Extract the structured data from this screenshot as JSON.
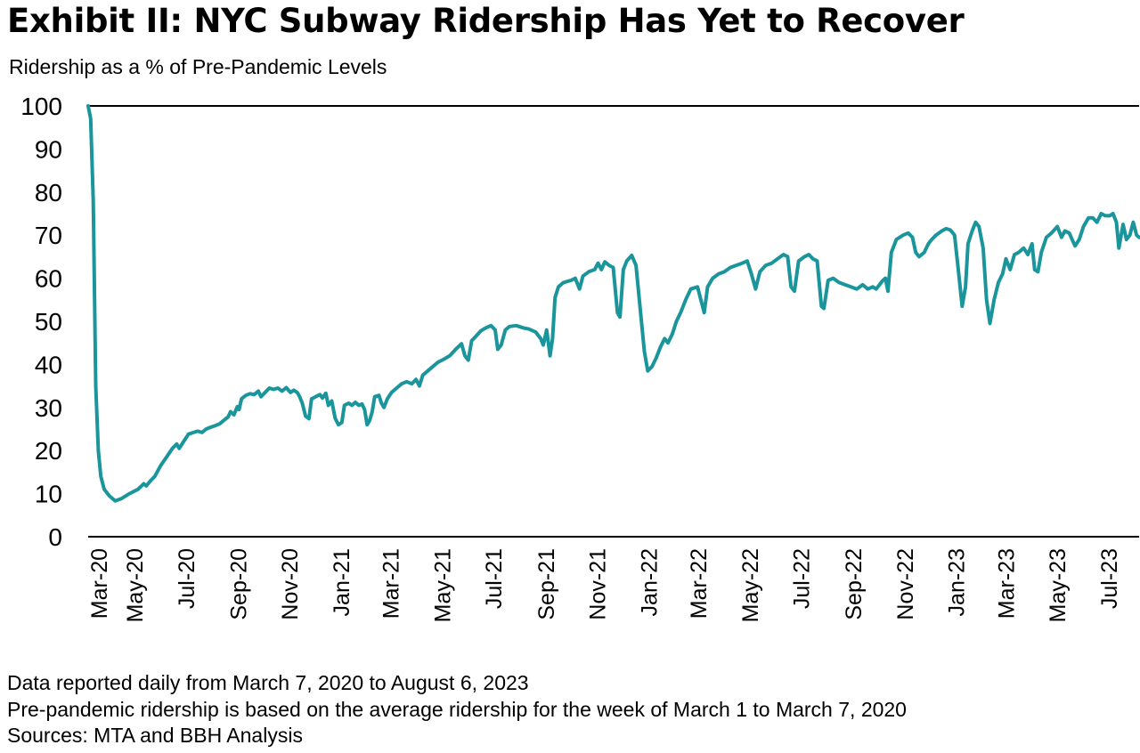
{
  "title": "Exhibit II: NYC Subway Ridership Has Yet to Recover",
  "notes": [
    "Data reported daily from March 7, 2020 to August 6, 2023",
    "Pre-pandemic ridership is based on the average ridership for the week of March 1 to March 7, 2020",
    "Sources: MTA and BBH Analysis"
  ],
  "colors": {
    "line": "#1a959b",
    "axis": "#000000"
  },
  "chart_data": {
    "type": "line",
    "title": "Exhibit II: NYC Subway Ridership Has Yet to Recover",
    "ylabel": "Ridership as a % of Pre-Pandemic Levels",
    "xlabel": "",
    "ylim": [
      0,
      100
    ],
    "yticks": [
      0,
      10,
      20,
      30,
      40,
      50,
      60,
      70,
      80,
      90,
      100
    ],
    "xlim": [
      "2020-03-07",
      "2023-08-06"
    ],
    "xticks": [
      {
        "label": "Mar-20",
        "date": "2020-03-01"
      },
      {
        "label": "May-20",
        "date": "2020-05-01"
      },
      {
        "label": "Jul-20",
        "date": "2020-07-01"
      },
      {
        "label": "Sep-20",
        "date": "2020-09-01"
      },
      {
        "label": "Nov-20",
        "date": "2020-11-01"
      },
      {
        "label": "Jan-21",
        "date": "2021-01-01"
      },
      {
        "label": "Mar-21",
        "date": "2021-03-01"
      },
      {
        "label": "May-21",
        "date": "2021-05-01"
      },
      {
        "label": "Jul-21",
        "date": "2021-07-01"
      },
      {
        "label": "Sep-21",
        "date": "2021-09-01"
      },
      {
        "label": "Nov-21",
        "date": "2021-11-01"
      },
      {
        "label": "Jan-22",
        "date": "2022-01-01"
      },
      {
        "label": "Mar-22",
        "date": "2022-03-01"
      },
      {
        "label": "May-22",
        "date": "2022-05-01"
      },
      {
        "label": "Jul-22",
        "date": "2022-07-01"
      },
      {
        "label": "Sep-22",
        "date": "2022-09-01"
      },
      {
        "label": "Nov-22",
        "date": "2022-11-01"
      },
      {
        "label": "Jan-23",
        "date": "2023-01-01"
      },
      {
        "label": "Mar-23",
        "date": "2023-03-01"
      },
      {
        "label": "May-23",
        "date": "2023-05-01"
      },
      {
        "label": "Jul-23",
        "date": "2023-07-01"
      }
    ],
    "grid": false,
    "series": [
      {
        "values": [
          [
            "2020-03-07",
            100
          ],
          [
            "2020-03-10",
            97
          ],
          [
            "2020-03-13",
            78
          ],
          [
            "2020-03-16",
            35
          ],
          [
            "2020-03-19",
            20
          ],
          [
            "2020-03-22",
            14
          ],
          [
            "2020-03-26",
            11
          ],
          [
            "2020-04-01",
            9.5
          ],
          [
            "2020-04-08",
            8.3
          ],
          [
            "2020-04-15",
            8.8
          ],
          [
            "2020-04-25",
            10
          ],
          [
            "2020-05-05",
            11
          ],
          [
            "2020-05-12",
            12.3
          ],
          [
            "2020-05-15",
            11.8
          ],
          [
            "2020-05-20",
            13
          ],
          [
            "2020-05-25",
            14
          ],
          [
            "2020-06-01",
            16.5
          ],
          [
            "2020-06-08",
            18.5
          ],
          [
            "2020-06-15",
            20.5
          ],
          [
            "2020-06-20",
            21.5
          ],
          [
            "2020-06-23",
            20.5
          ],
          [
            "2020-06-28",
            22
          ],
          [
            "2020-07-04",
            23.8
          ],
          [
            "2020-07-10",
            24.2
          ],
          [
            "2020-07-15",
            24.5
          ],
          [
            "2020-07-20",
            24.2
          ],
          [
            "2020-07-25",
            25
          ],
          [
            "2020-07-30",
            25.4
          ],
          [
            "2020-08-05",
            25.8
          ],
          [
            "2020-08-10",
            26.2
          ],
          [
            "2020-08-15",
            27
          ],
          [
            "2020-08-20",
            27.8
          ],
          [
            "2020-08-23",
            29
          ],
          [
            "2020-08-27",
            28.3
          ],
          [
            "2020-08-31",
            30.2
          ],
          [
            "2020-09-02",
            29.5
          ],
          [
            "2020-09-05",
            32
          ],
          [
            "2020-09-10",
            32.8
          ],
          [
            "2020-09-15",
            33.2
          ],
          [
            "2020-09-20",
            33
          ],
          [
            "2020-09-25",
            33.8
          ],
          [
            "2020-09-28",
            32.5
          ],
          [
            "2020-10-03",
            33.5
          ],
          [
            "2020-10-08",
            34.5
          ],
          [
            "2020-10-13",
            34.2
          ],
          [
            "2020-10-18",
            34.5
          ],
          [
            "2020-10-23",
            33.8
          ],
          [
            "2020-10-28",
            34.6
          ],
          [
            "2020-11-02",
            33.5
          ],
          [
            "2020-11-06",
            34
          ],
          [
            "2020-11-10",
            33.5
          ],
          [
            "2020-11-13",
            32.5
          ],
          [
            "2020-11-16",
            31
          ],
          [
            "2020-11-20",
            28
          ],
          [
            "2020-11-24",
            27.4
          ],
          [
            "2020-11-27",
            32
          ],
          [
            "2020-12-02",
            32.5
          ],
          [
            "2020-12-07",
            33
          ],
          [
            "2020-12-10",
            32.2
          ],
          [
            "2020-12-14",
            33.3
          ],
          [
            "2020-12-17",
            30.5
          ],
          [
            "2020-12-21",
            31.5
          ],
          [
            "2020-12-25",
            27.5
          ],
          [
            "2020-12-29",
            26
          ],
          [
            "2021-01-02",
            26.5
          ],
          [
            "2021-01-05",
            30.5
          ],
          [
            "2021-01-10",
            31
          ],
          [
            "2021-01-14",
            30.5
          ],
          [
            "2021-01-18",
            31.2
          ],
          [
            "2021-01-22",
            30.5
          ],
          [
            "2021-01-26",
            30.8
          ],
          [
            "2021-01-29",
            29.5
          ],
          [
            "2021-02-01",
            26
          ],
          [
            "2021-02-04",
            27
          ],
          [
            "2021-02-07",
            29
          ],
          [
            "2021-02-10",
            32.5
          ],
          [
            "2021-02-15",
            32.8
          ],
          [
            "2021-02-18",
            31
          ],
          [
            "2021-02-21",
            30
          ],
          [
            "2021-02-25",
            32
          ],
          [
            "2021-03-02",
            33.5
          ],
          [
            "2021-03-08",
            34.5
          ],
          [
            "2021-03-14",
            35.5
          ],
          [
            "2021-03-20",
            36
          ],
          [
            "2021-03-26",
            35.5
          ],
          [
            "2021-03-31",
            36.5
          ],
          [
            "2021-04-04",
            35
          ],
          [
            "2021-04-08",
            37.5
          ],
          [
            "2021-04-14",
            38.5
          ],
          [
            "2021-04-20",
            39.5
          ],
          [
            "2021-04-26",
            40.5
          ],
          [
            "2021-05-03",
            41.2
          ],
          [
            "2021-05-10",
            42
          ],
          [
            "2021-05-17",
            43.5
          ],
          [
            "2021-05-24",
            44.8
          ],
          [
            "2021-05-28",
            42
          ],
          [
            "2021-06-01",
            41
          ],
          [
            "2021-06-05",
            45.5
          ],
          [
            "2021-06-10",
            46.5
          ],
          [
            "2021-06-16",
            47.8
          ],
          [
            "2021-06-22",
            48.5
          ],
          [
            "2021-06-28",
            49
          ],
          [
            "2021-07-03",
            48
          ],
          [
            "2021-07-06",
            43.5
          ],
          [
            "2021-07-10",
            44.5
          ],
          [
            "2021-07-15",
            48
          ],
          [
            "2021-07-20",
            48.8
          ],
          [
            "2021-07-28",
            49
          ],
          [
            "2021-08-05",
            48.5
          ],
          [
            "2021-08-12",
            48.2
          ],
          [
            "2021-08-20",
            47.5
          ],
          [
            "2021-08-26",
            46
          ],
          [
            "2021-08-29",
            44.5
          ],
          [
            "2021-09-02",
            48
          ],
          [
            "2021-09-06",
            42
          ],
          [
            "2021-09-09",
            46
          ],
          [
            "2021-09-12",
            55.5
          ],
          [
            "2021-09-16",
            58
          ],
          [
            "2021-09-22",
            59
          ],
          [
            "2021-10-01",
            59.5
          ],
          [
            "2021-10-06",
            60
          ],
          [
            "2021-10-11",
            57.5
          ],
          [
            "2021-10-15",
            60.5
          ],
          [
            "2021-10-22",
            61.5
          ],
          [
            "2021-10-29",
            62
          ],
          [
            "2021-11-02",
            63.5
          ],
          [
            "2021-11-06",
            62
          ],
          [
            "2021-11-10",
            63.8
          ],
          [
            "2021-11-15",
            63
          ],
          [
            "2021-11-20",
            62.5
          ],
          [
            "2021-11-25",
            52
          ],
          [
            "2021-11-28",
            51
          ],
          [
            "2021-12-02",
            62
          ],
          [
            "2021-12-06",
            64
          ],
          [
            "2021-12-12",
            65.3
          ],
          [
            "2021-12-17",
            63
          ],
          [
            "2021-12-22",
            53
          ],
          [
            "2021-12-27",
            43
          ],
          [
            "2021-12-31",
            38.5
          ],
          [
            "2022-01-05",
            39.5
          ],
          [
            "2022-01-10",
            41.5
          ],
          [
            "2022-01-15",
            44
          ],
          [
            "2022-01-20",
            46
          ],
          [
            "2022-01-24",
            45
          ],
          [
            "2022-01-29",
            47
          ],
          [
            "2022-02-03",
            50
          ],
          [
            "2022-02-08",
            52
          ],
          [
            "2022-02-14",
            55
          ],
          [
            "2022-02-20",
            57.5
          ],
          [
            "2022-02-28",
            58
          ],
          [
            "2022-03-04",
            55
          ],
          [
            "2022-03-08",
            52
          ],
          [
            "2022-03-12",
            58
          ],
          [
            "2022-03-18",
            60
          ],
          [
            "2022-03-25",
            61
          ],
          [
            "2022-04-01",
            61.5
          ],
          [
            "2022-04-08",
            62.5
          ],
          [
            "2022-04-15",
            63
          ],
          [
            "2022-04-22",
            63.5
          ],
          [
            "2022-04-28",
            64
          ],
          [
            "2022-05-03",
            61
          ],
          [
            "2022-05-08",
            57.5
          ],
          [
            "2022-05-13",
            61.5
          ],
          [
            "2022-05-20",
            63
          ],
          [
            "2022-05-27",
            63.5
          ],
          [
            "2022-06-03",
            64.5
          ],
          [
            "2022-06-10",
            65.5
          ],
          [
            "2022-06-15",
            65
          ],
          [
            "2022-06-19",
            58
          ],
          [
            "2022-06-23",
            57
          ],
          [
            "2022-06-28",
            64
          ],
          [
            "2022-07-05",
            65
          ],
          [
            "2022-07-10",
            65.5
          ],
          [
            "2022-07-15",
            64.5
          ],
          [
            "2022-07-20",
            64
          ],
          [
            "2022-07-25",
            53.5
          ],
          [
            "2022-07-28",
            53
          ],
          [
            "2022-08-02",
            59.5
          ],
          [
            "2022-08-08",
            60
          ],
          [
            "2022-08-15",
            59
          ],
          [
            "2022-08-22",
            58.5
          ],
          [
            "2022-08-29",
            58
          ],
          [
            "2022-09-05",
            57.5
          ],
          [
            "2022-09-12",
            58.5
          ],
          [
            "2022-09-18",
            57.5
          ],
          [
            "2022-09-24",
            58
          ],
          [
            "2022-09-28",
            57.5
          ],
          [
            "2022-10-02",
            58.5
          ],
          [
            "2022-10-06",
            59.5
          ],
          [
            "2022-10-09",
            60
          ],
          [
            "2022-10-12",
            57
          ],
          [
            "2022-10-16",
            66
          ],
          [
            "2022-10-22",
            69
          ],
          [
            "2022-10-30",
            70
          ],
          [
            "2022-11-05",
            70.5
          ],
          [
            "2022-11-10",
            69.5
          ],
          [
            "2022-11-14",
            66
          ],
          [
            "2022-11-18",
            65
          ],
          [
            "2022-11-24",
            66
          ],
          [
            "2022-11-29",
            68
          ],
          [
            "2022-12-03",
            69
          ],
          [
            "2022-12-08",
            70
          ],
          [
            "2022-12-15",
            71
          ],
          [
            "2022-12-20",
            71.5
          ],
          [
            "2022-12-25",
            71.2
          ],
          [
            "2022-12-30",
            70
          ],
          [
            "2023-01-04",
            61
          ],
          [
            "2023-01-08",
            53.5
          ],
          [
            "2023-01-12",
            58
          ],
          [
            "2023-01-15",
            68
          ],
          [
            "2023-01-20",
            71
          ],
          [
            "2023-01-24",
            73
          ],
          [
            "2023-01-28",
            72
          ],
          [
            "2023-02-02",
            67
          ],
          [
            "2023-02-06",
            55
          ],
          [
            "2023-02-10",
            49.5
          ],
          [
            "2023-02-15",
            55
          ],
          [
            "2023-02-20",
            59
          ],
          [
            "2023-02-25",
            61
          ],
          [
            "2023-03-01",
            64.5
          ],
          [
            "2023-03-06",
            62
          ],
          [
            "2023-03-11",
            65.5
          ],
          [
            "2023-03-16",
            66
          ],
          [
            "2023-03-22",
            67
          ],
          [
            "2023-03-27",
            65.5
          ],
          [
            "2023-04-01",
            68
          ],
          [
            "2023-04-04",
            62
          ],
          [
            "2023-04-08",
            61.5
          ],
          [
            "2023-04-12",
            66
          ],
          [
            "2023-04-18",
            69.5
          ],
          [
            "2023-04-24",
            70.5
          ],
          [
            "2023-05-01",
            72
          ],
          [
            "2023-05-06",
            69.5
          ],
          [
            "2023-05-10",
            71
          ],
          [
            "2023-05-15",
            70.5
          ],
          [
            "2023-05-22",
            67.5
          ],
          [
            "2023-05-27",
            69
          ],
          [
            "2023-06-01",
            72
          ],
          [
            "2023-06-07",
            74
          ],
          [
            "2023-06-12",
            74
          ],
          [
            "2023-06-17",
            73
          ],
          [
            "2023-06-22",
            75
          ],
          [
            "2023-06-27",
            74.5
          ],
          [
            "2023-07-02",
            74.5
          ],
          [
            "2023-07-06",
            75
          ],
          [
            "2023-07-10",
            73
          ],
          [
            "2023-07-13",
            67
          ],
          [
            "2023-07-18",
            72.5
          ],
          [
            "2023-07-22",
            69
          ],
          [
            "2023-07-26",
            70
          ],
          [
            "2023-07-30",
            73
          ],
          [
            "2023-08-03",
            70
          ],
          [
            "2023-08-06",
            69.5
          ]
        ]
      }
    ]
  }
}
